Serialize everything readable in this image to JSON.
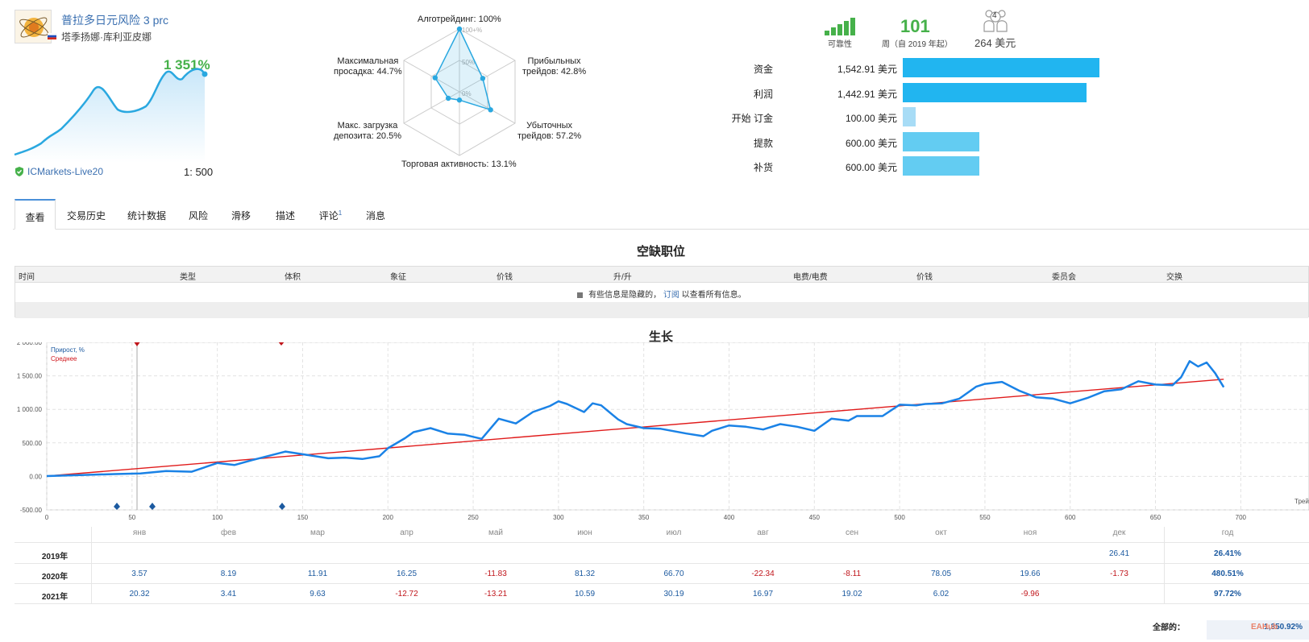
{
  "signal": {
    "name": "普拉多日元风险",
    "suffix": "3 prc",
    "author": "塔季扬娜·库利亚皮娜",
    "growth_percent": "1 351%",
    "broker": "ICMarkets-Live20",
    "leverage": "1: 500"
  },
  "radar": {
    "algo": "Алготрейдинг: 100%",
    "profit": [
      "Прибыльных",
      "трейдов: 42.8%"
    ],
    "loss": [
      "Убыточных",
      "трейдов: 57.2%"
    ],
    "activity": "Торговая активность: 13.1%",
    "load": [
      "Макс. загрузка",
      "депозита: 20.5%"
    ],
    "drawdown": [
      "Максимальная",
      "просадка: 44.7%"
    ],
    "ticks": [
      "100+%",
      "50%",
      "0%"
    ],
    "values": {
      "algo": 1.0,
      "profit": 0.428,
      "loss": 0.572,
      "activity": 0.131,
      "load": 0.205,
      "drawdown": 0.447
    }
  },
  "stats": {
    "reliability_label": "可靠性",
    "weeks_value": "101",
    "weeks_label": "周（自 2019 年起）",
    "subscribers_count": "4",
    "subscription_price": "264 美元"
  },
  "balance": [
    {
      "label": "资金",
      "value": "1,542.91 美元",
      "amount": 1542.91,
      "color": "#21b5f0"
    },
    {
      "label": "利润",
      "value": "1,442.91 美元",
      "amount": 1442.91,
      "color": "#21b5f0"
    },
    {
      "label": "开始 订金",
      "value": "100.00 美元",
      "amount": 100.0,
      "color": "#a7dcf6"
    },
    {
      "label": "提款",
      "value": "600.00 美元",
      "amount": 600.0,
      "color": "#63ccf2"
    },
    {
      "label": "补货",
      "value": "600.00 美元",
      "amount": 600.0,
      "color": "#63ccf2"
    }
  ],
  "tabs": [
    "查看",
    "交易历史",
    "统计数据",
    "风险",
    "滑移",
    "描述",
    "评论",
    "消息"
  ],
  "tab_badge": "1",
  "positions": {
    "title": "空缺职位",
    "columns": [
      "时间",
      "类型",
      "体积",
      "象征",
      "价钱",
      "升/升",
      "电费/电费",
      "价钱",
      "委员会",
      "交换"
    ],
    "hidden_msg_pre": "有些信息是隐藏的，",
    "hidden_msg_link": "订阅",
    "hidden_msg_post": "以查看所有信息。"
  },
  "growth": {
    "title": "生长",
    "legend_growth": "Прирост, %",
    "legend_avg": "Среднее",
    "x_axis_label": "Трей",
    "yticks": [
      "2 000.00",
      "1 500.00",
      "1 000.00",
      "500.00",
      "0.00",
      "-500.00"
    ],
    "xticks": [
      "0",
      "50",
      "100",
      "150",
      "200",
      "250",
      "300",
      "350",
      "400",
      "450",
      "500",
      "550",
      "600",
      "650",
      "700"
    ]
  },
  "chart_data": {
    "type": "line",
    "xlabel": "Трей",
    "ylabel": "",
    "xlim": [
      0,
      740
    ],
    "ylim": [
      -500,
      2000
    ],
    "series": [
      {
        "name": "Прирост, %",
        "x": [
          0,
          20,
          40,
          55,
          70,
          85,
          100,
          110,
          120,
          140,
          150,
          165,
          175,
          185,
          195,
          200,
          210,
          215,
          225,
          235,
          245,
          255,
          265,
          275,
          285,
          295,
          300,
          305,
          315,
          320,
          325,
          335,
          340,
          350,
          360,
          375,
          385,
          390,
          400,
          410,
          420,
          430,
          440,
          450,
          460,
          470,
          475,
          490,
          500,
          510,
          515,
          525,
          535,
          545,
          550,
          560,
          570,
          580,
          590,
          600,
          610,
          620,
          630,
          640,
          650,
          660,
          665,
          670,
          675,
          680,
          685,
          690
        ],
        "y": [
          5,
          20,
          35,
          45,
          80,
          70,
          200,
          170,
          240,
          370,
          330,
          270,
          280,
          260,
          300,
          420,
          570,
          660,
          720,
          640,
          620,
          560,
          860,
          790,
          960,
          1050,
          1120,
          1080,
          960,
          1090,
          1060,
          850,
          780,
          720,
          710,
          640,
          600,
          680,
          760,
          740,
          700,
          780,
          740,
          680,
          860,
          830,
          900,
          900,
          1070,
          1060,
          1080,
          1090,
          1160,
          1340,
          1380,
          1410,
          1280,
          1180,
          1160,
          1090,
          1170,
          1270,
          1300,
          1420,
          1370,
          1360,
          1480,
          1720,
          1640,
          1700,
          1540,
          1330
        ]
      },
      {
        "name": "Среднее",
        "x": [
          0,
          690
        ],
        "y": [
          5,
          1450
        ]
      }
    ]
  },
  "monthly": {
    "months": [
      "янв",
      "фев",
      "мар",
      "апр",
      "май",
      "июн",
      "июл",
      "авг",
      "сен",
      "окт",
      "ноя",
      "дек"
    ],
    "year_col": "год",
    "rows": [
      {
        "year": "2019年",
        "values": [
          "",
          "",
          "",
          "",
          "",
          "",
          "",
          "",
          "",
          "",
          "",
          "26.41"
        ],
        "total": "26.41%"
      },
      {
        "year": "2020年",
        "values": [
          "3.57",
          "8.19",
          "11.91",
          "16.25",
          "-11.83",
          "81.32",
          "66.70",
          "-22.34",
          "-8.11",
          "78.05",
          "19.66",
          "-1.73"
        ],
        "total": "480.51%"
      },
      {
        "year": "2021年",
        "values": [
          "20.32",
          "3.41",
          "9.63",
          "-12.72",
          "-13.21",
          "10.59",
          "30.19",
          "16.97",
          "19.02",
          "6.02",
          "-9.96",
          ""
        ],
        "total": "97.72%"
      }
    ],
    "total_label": "全部的：",
    "total_value": "1,350.92%"
  },
  "watermark": "EAHub"
}
